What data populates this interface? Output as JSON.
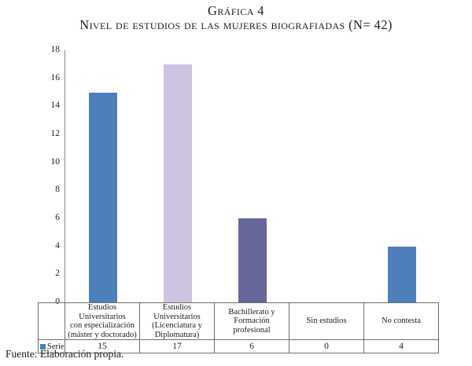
{
  "figure": {
    "title": "Gráfica 4",
    "subtitle": "Nivel de estudios de las mujeres biografiadas (N= 42)",
    "source_note": "Fuente: Elaboración propia."
  },
  "chart_data": {
    "type": "bar",
    "title": "Gráfica 4",
    "subtitle": "Nivel de estudios de las mujeres biografiadas (N= 42)",
    "categories": [
      "Estudios Universitarios con especialización (máster y doctorado)",
      "Estudios Universitarios (Licenciatura y Diplomatura)",
      "Bachillerato y Formación profesional",
      "Sin estudios",
      "No contesta"
    ],
    "category_lines": [
      [
        "Estudios Universitarios",
        "con especialización",
        "(máster y doctorado)"
      ],
      [
        "Estudios Universitarios",
        "(Licenciatura y",
        "Diplomatura)"
      ],
      [
        "Bachillerato y",
        "Formación profesional"
      ],
      [
        "Sin estudios"
      ],
      [
        "No contesta"
      ]
    ],
    "series": [
      {
        "name": "Series1",
        "values": [
          15,
          17,
          6,
          0,
          4
        ]
      }
    ],
    "ylim": [
      0,
      18
    ],
    "ytick_step": 2,
    "grid": false,
    "legend_position": "data-table-left",
    "bar_colors": [
      "#4d80ba",
      "#ccc4e0",
      "#66669b",
      "#4d80ba",
      "#4d80ba"
    ],
    "legend_marker_color": "#4d80ba",
    "axis_color": "#8c8c8c",
    "table_border_color": "#6e6e6e"
  }
}
